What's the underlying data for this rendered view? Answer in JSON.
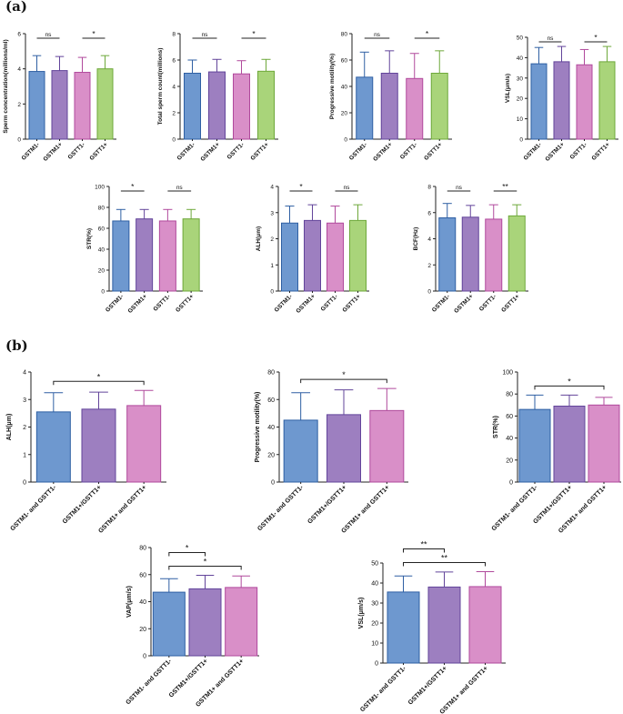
{
  "panels": {
    "a": "(a)",
    "b": "(b)"
  },
  "colors": {
    "GSTM1-": "#6e98cf",
    "GSTM1+": "#9d7fc0",
    "GSTT1-": "#d98fc8",
    "GSTT1+": "#a9d47a",
    "GSTM1-_edge": "#2e5fa3",
    "GSTM1+_edge": "#62449a",
    "GSTT1-_edge": "#b0499c",
    "GSTT1+_edge": "#6ea83a"
  },
  "chart_data": [
    {
      "id": "a1",
      "type": "bar",
      "categories": [
        "GSTM1-",
        "GSTM1+",
        "GSTT1-",
        "GSTT1+"
      ],
      "values": [
        3.85,
        3.9,
        3.8,
        4.0
      ],
      "errors": [
        0.9,
        0.8,
        0.85,
        0.75
      ],
      "ylabel": "Sperm concentration(millions/ml)",
      "ylim": [
        0,
        6
      ],
      "ticks": [
        0,
        2,
        4,
        6
      ],
      "significance": [
        {
          "from": 0,
          "to": 1,
          "label": "ns"
        },
        {
          "from": 2,
          "to": 3,
          "label": "*"
        }
      ]
    },
    {
      "id": "a2",
      "type": "bar",
      "categories": [
        "GSTM1-",
        "GSTM1+",
        "GSTT1-",
        "GSTT1+"
      ],
      "values": [
        5.0,
        5.1,
        4.95,
        5.15
      ],
      "errors": [
        1.0,
        0.95,
        1.0,
        0.9
      ],
      "ylabel": "Total sperm count(millions)",
      "ylim": [
        0,
        8
      ],
      "ticks": [
        0,
        2,
        4,
        6,
        8
      ],
      "significance": [
        {
          "from": 0,
          "to": 1,
          "label": "ns"
        },
        {
          "from": 2,
          "to": 3,
          "label": "*"
        }
      ]
    },
    {
      "id": "a3",
      "type": "bar",
      "categories": [
        "GSTM1-",
        "GSTM1+",
        "GSTT1-",
        "GSTT1+"
      ],
      "values": [
        47,
        50,
        46,
        50
      ],
      "errors": [
        19,
        17,
        19,
        17
      ],
      "ylabel": "Progressive motility(%)",
      "ylim": [
        0,
        80
      ],
      "ticks": [
        0,
        20,
        40,
        60,
        80
      ],
      "significance": [
        {
          "from": 0,
          "to": 1,
          "label": "ns"
        },
        {
          "from": 2,
          "to": 3,
          "label": "*"
        }
      ]
    },
    {
      "id": "a4",
      "type": "bar",
      "categories": [
        "GSTM1-",
        "GSTM1+",
        "GSTT1-",
        "GSTT1+"
      ],
      "values": [
        37,
        38,
        36.5,
        38
      ],
      "errors": [
        8,
        7.5,
        7.5,
        7.5
      ],
      "ylabel": "VSL(μm/s)",
      "ylim": [
        0,
        50
      ],
      "ticks": [
        0,
        10,
        20,
        30,
        40,
        50
      ],
      "significance": [
        {
          "from": 0,
          "to": 1,
          "label": "ns"
        },
        {
          "from": 2,
          "to": 3,
          "label": "*"
        }
      ]
    },
    {
      "id": "a5",
      "type": "bar",
      "categories": [
        "GSTM1-",
        "GSTM1+",
        "GSTT1-",
        "GSTT1+"
      ],
      "values": [
        67,
        69,
        67,
        69
      ],
      "errors": [
        11,
        9,
        11,
        9
      ],
      "ylabel": "STR(%)",
      "ylim": [
        0,
        100
      ],
      "ticks": [
        0,
        20,
        40,
        60,
        80,
        100
      ],
      "significance": [
        {
          "from": 0,
          "to": 1,
          "label": "*"
        },
        {
          "from": 2,
          "to": 3,
          "label": "ns"
        }
      ]
    },
    {
      "id": "a6",
      "type": "bar",
      "categories": [
        "GSTM1-",
        "GSTM1+",
        "GSTT1-",
        "GSTT1+"
      ],
      "values": [
        2.6,
        2.7,
        2.6,
        2.7
      ],
      "errors": [
        0.65,
        0.6,
        0.65,
        0.6
      ],
      "ylabel": "ALH(μm)",
      "ylim": [
        0,
        4
      ],
      "ticks": [
        0,
        1,
        2,
        3,
        4
      ],
      "significance": [
        {
          "from": 0,
          "to": 1,
          "label": "*"
        },
        {
          "from": 2,
          "to": 3,
          "label": "ns"
        }
      ]
    },
    {
      "id": "a7",
      "type": "bar",
      "categories": [
        "GSTM1-",
        "GSTM1+",
        "GSTT1-",
        "GSTT1+"
      ],
      "values": [
        5.6,
        5.65,
        5.5,
        5.75
      ],
      "errors": [
        1.1,
        0.9,
        1.1,
        0.85
      ],
      "ylabel": "BCF(Hz)",
      "ylim": [
        0,
        8
      ],
      "ticks": [
        0,
        2,
        4,
        6,
        8
      ],
      "significance": [
        {
          "from": 0,
          "to": 1,
          "label": "ns"
        },
        {
          "from": 2,
          "to": 3,
          "label": "**"
        }
      ]
    },
    {
      "id": "b1",
      "type": "bar",
      "categories": [
        "GSTM1- and GSTT1-",
        "GSTM1+/GSTT1+",
        "GSTM1+ and GSTT1+"
      ],
      "values": [
        2.55,
        2.65,
        2.78
      ],
      "errors": [
        0.7,
        0.62,
        0.55
      ],
      "ylabel": "ALH(μm)",
      "ylim": [
        0,
        4
      ],
      "ticks": [
        0,
        1,
        2,
        3,
        4
      ],
      "significance": [
        {
          "from": 0,
          "to": 2,
          "label": "*"
        }
      ]
    },
    {
      "id": "b2",
      "type": "bar",
      "categories": [
        "GSTM1- and GSTT1-",
        "GSTM1+/GSTT1+",
        "GSTM1+ and GSTT1+"
      ],
      "values": [
        45,
        49,
        52
      ],
      "errors": [
        20,
        18,
        16
      ],
      "ylabel": "Progressive motility(%)",
      "ylim": [
        0,
        80
      ],
      "ticks": [
        0,
        20,
        40,
        60,
        80
      ],
      "significance": [
        {
          "from": 0,
          "to": 2,
          "label": "*"
        }
      ]
    },
    {
      "id": "b3",
      "type": "bar",
      "categories": [
        "GSTM1- and GSTT1-",
        "GSTM1+/GSTT1+",
        "GSTM1+ and GSTT1+"
      ],
      "values": [
        66,
        69,
        70
      ],
      "errors": [
        13,
        10,
        7
      ],
      "ylabel": "STR(%)",
      "ylim": [
        0,
        100
      ],
      "ticks": [
        0,
        20,
        40,
        60,
        80,
        100
      ],
      "significance": [
        {
          "from": 0,
          "to": 2,
          "label": "*"
        }
      ]
    },
    {
      "id": "b4",
      "type": "bar",
      "categories": [
        "GSTM1- and GSTT1-",
        "GSTM1+/GSTT1+",
        "GSTM1+ and GSTT1+"
      ],
      "values": [
        47,
        49.5,
        50.5
      ],
      "errors": [
        10,
        10,
        8.5
      ],
      "ylabel": "VAP(μm/s)",
      "ylim": [
        0,
        80
      ],
      "ticks": [
        0,
        20,
        40,
        60,
        80
      ],
      "significance": [
        {
          "from": 0,
          "to": 1,
          "label": "*"
        },
        {
          "from": 0,
          "to": 2,
          "label": "*"
        }
      ]
    },
    {
      "id": "b5",
      "type": "bar",
      "categories": [
        "GSTM1- and GSTT1-",
        "GSTM1+/GSTT1+",
        "GSTM1+ and GSTT1+"
      ],
      "values": [
        35.5,
        38,
        38.2
      ],
      "errors": [
        8,
        7.5,
        7.5
      ],
      "ylabel": "VSL(μm/s)",
      "ylim": [
        0,
        50
      ],
      "ticks": [
        0,
        10,
        20,
        30,
        40,
        50
      ],
      "significance": [
        {
          "from": 0,
          "to": 1,
          "label": "**"
        },
        {
          "from": 0,
          "to": 2,
          "label": "**"
        }
      ]
    }
  ]
}
